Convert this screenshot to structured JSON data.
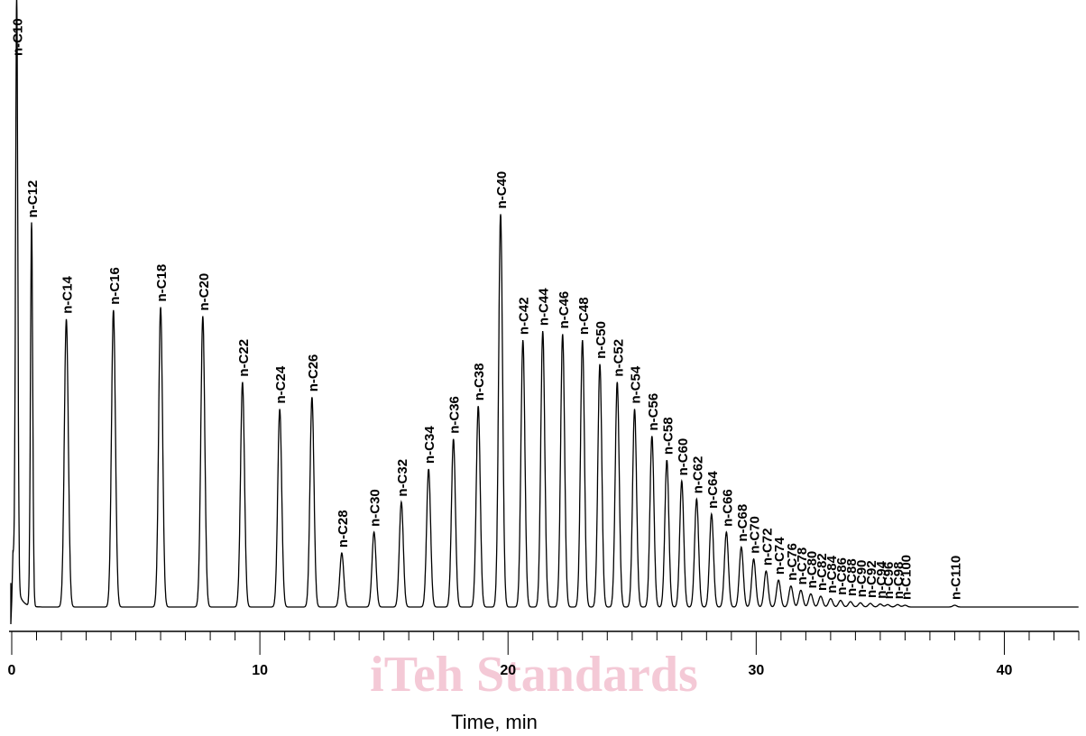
{
  "chart_data": {
    "type": "line",
    "title": "",
    "xlabel": "Time, min",
    "ylabel": "",
    "xlim": [
      0,
      43
    ],
    "ylim": [
      0,
      1
    ],
    "grid": false,
    "x_ticks": [
      0,
      10,
      20,
      30,
      40
    ],
    "x_tick_labels": [
      "0",
      "10",
      "20",
      "30",
      "40"
    ],
    "x_minor_tick_step": 1,
    "baseline": 0.0,
    "peaks": [
      {
        "label": "n-C10",
        "x": 0.2,
        "height": 0.98
      },
      {
        "label": "n-C12",
        "x": 0.8,
        "height": 0.64
      },
      {
        "label": "n-C14",
        "x": 2.2,
        "height": 0.48
      },
      {
        "label": "n-C16",
        "x": 4.1,
        "height": 0.495
      },
      {
        "label": "n-C18",
        "x": 6.0,
        "height": 0.5
      },
      {
        "label": "n-C20",
        "x": 7.7,
        "height": 0.485
      },
      {
        "label": "n-C22",
        "x": 9.3,
        "height": 0.375
      },
      {
        "label": "n-C24",
        "x": 10.8,
        "height": 0.33
      },
      {
        "label": "n-C26",
        "x": 12.1,
        "height": 0.35
      },
      {
        "label": "n-C28",
        "x": 13.3,
        "height": 0.09
      },
      {
        "label": "n-C30",
        "x": 14.6,
        "height": 0.125
      },
      {
        "label": "n-C32",
        "x": 15.7,
        "height": 0.175
      },
      {
        "label": "n-C34",
        "x": 16.8,
        "height": 0.23
      },
      {
        "label": "n-C36",
        "x": 17.8,
        "height": 0.28
      },
      {
        "label": "n-C38",
        "x": 18.8,
        "height": 0.335
      },
      {
        "label": "n-C40",
        "x": 19.7,
        "height": 0.655
      },
      {
        "label": "n-C42",
        "x": 20.6,
        "height": 0.445
      },
      {
        "label": "n-C44",
        "x": 21.4,
        "height": 0.46
      },
      {
        "label": "n-C46",
        "x": 22.2,
        "height": 0.455
      },
      {
        "label": "n-C48",
        "x": 23.0,
        "height": 0.445
      },
      {
        "label": "n-C50",
        "x": 23.7,
        "height": 0.405
      },
      {
        "label": "n-C52",
        "x": 24.4,
        "height": 0.375
      },
      {
        "label": "n-C54",
        "x": 25.1,
        "height": 0.33
      },
      {
        "label": "n-C56",
        "x": 25.8,
        "height": 0.285
      },
      {
        "label": "n-C58",
        "x": 26.4,
        "height": 0.245
      },
      {
        "label": "n-C60",
        "x": 27.0,
        "height": 0.21
      },
      {
        "label": "n-C62",
        "x": 27.6,
        "height": 0.18
      },
      {
        "label": "n-C64",
        "x": 28.2,
        "height": 0.155
      },
      {
        "label": "n-C66",
        "x": 28.8,
        "height": 0.125
      },
      {
        "label": "n-C68",
        "x": 29.4,
        "height": 0.1
      },
      {
        "label": "n-C70",
        "x": 29.9,
        "height": 0.08
      },
      {
        "label": "n-C72",
        "x": 30.4,
        "height": 0.06
      },
      {
        "label": "n-C74",
        "x": 30.9,
        "height": 0.045
      },
      {
        "label": "n-C76",
        "x": 31.4,
        "height": 0.035
      },
      {
        "label": "n-C78",
        "x": 31.8,
        "height": 0.028
      },
      {
        "label": "n-C80",
        "x": 32.2,
        "height": 0.022
      },
      {
        "label": "n-C82",
        "x": 32.6,
        "height": 0.018
      },
      {
        "label": "n-C84",
        "x": 33.0,
        "height": 0.014
      },
      {
        "label": "n-C86",
        "x": 33.4,
        "height": 0.011
      },
      {
        "label": "n-C88",
        "x": 33.8,
        "height": 0.009
      },
      {
        "label": "n-C90",
        "x": 34.2,
        "height": 0.007
      },
      {
        "label": "n-C92",
        "x": 34.6,
        "height": 0.006
      },
      {
        "label": "n-C94",
        "x": 35.0,
        "height": 0.005
      },
      {
        "label": "n-C96",
        "x": 35.3,
        "height": 0.004
      },
      {
        "label": "n-C98",
        "x": 35.7,
        "height": 0.004
      },
      {
        "label": "n-C100",
        "x": 36.0,
        "height": 0.003
      },
      {
        "label": "n-C110",
        "x": 38.0,
        "height": 0.003
      }
    ]
  },
  "watermark": "iTeh Standards",
  "colors": {
    "line": "#000000",
    "watermark": "#f4c9d6",
    "background": "#ffffff"
  }
}
